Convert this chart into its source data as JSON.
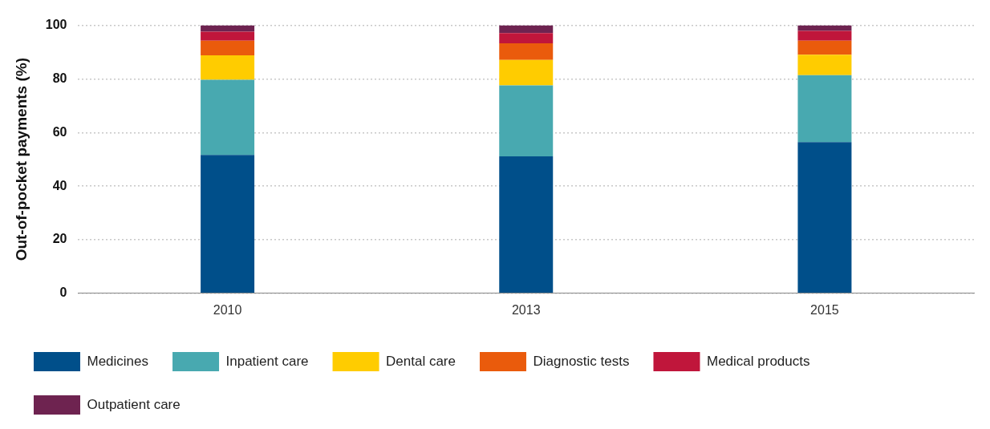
{
  "chart_data": {
    "type": "bar",
    "stacked": true,
    "ylabel": "Out-of-pocket payments (%)",
    "categories": [
      "2010",
      "2013",
      "2015"
    ],
    "series": [
      {
        "name": "Medicines",
        "color": "#004f8a",
        "values": [
          51.6,
          51.1,
          56.4
        ]
      },
      {
        "name": "Inpatient care",
        "color": "#48a9b0",
        "values": [
          28.1,
          26.5,
          25.0
        ]
      },
      {
        "name": "Dental care",
        "color": "#ffcc00",
        "values": [
          9.1,
          9.5,
          7.6
        ]
      },
      {
        "name": "Diagnostic tests",
        "color": "#ea5b0c",
        "values": [
          5.5,
          6.2,
          5.3
        ]
      },
      {
        "name": "Medical products",
        "color": "#c0163b",
        "values": [
          3.3,
          3.8,
          3.6
        ]
      },
      {
        "name": "Outpatient care",
        "color": "#6e2350",
        "values": [
          2.4,
          2.9,
          2.1
        ]
      }
    ],
    "ylim": [
      0,
      100
    ],
    "yticks": [
      0,
      20,
      40,
      60,
      80,
      100
    ],
    "grid": "y",
    "legend": "bottom"
  }
}
